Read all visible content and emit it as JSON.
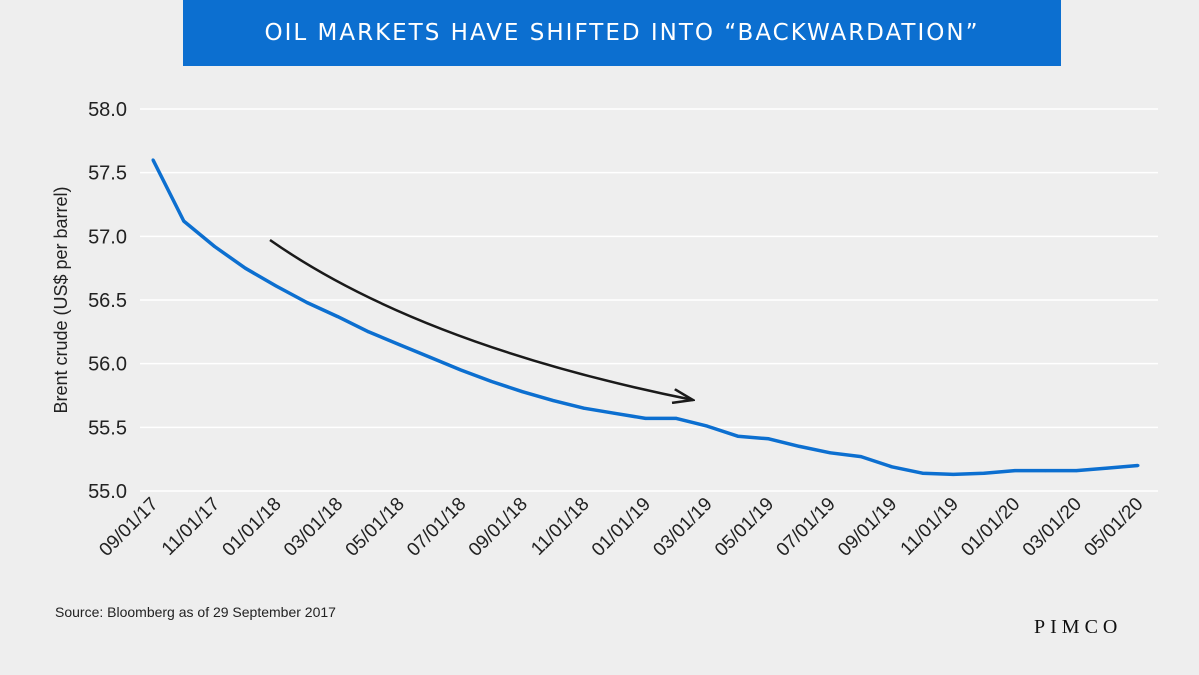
{
  "title": "OIL MARKETS HAVE SHIFTED INTO “BACKWARDATION”",
  "source": "Source: Bloomberg as of 29 September 2017",
  "logo": "PIMCO",
  "colors": {
    "banner": "#0c6fd0",
    "line": "#0c6fd0",
    "arrow": "#1a1a1a",
    "grid": "#ffffff"
  },
  "chart_data": {
    "type": "line",
    "title": "",
    "xlabel": "",
    "ylabel": "Brent crude (US$ per barrel)",
    "ylim": [
      55.0,
      58.0
    ],
    "yticks": [
      "58.0",
      "57.5",
      "57.0",
      "56.5",
      "56.0",
      "55.5",
      "55.0"
    ],
    "xticks": [
      "09/01/17",
      "11/01/17",
      "01/01/18",
      "03/01/18",
      "05/01/18",
      "07/01/18",
      "09/01/18",
      "11/01/18",
      "01/01/19",
      "03/01/19",
      "05/01/19",
      "07/01/19",
      "09/01/19",
      "11/01/19",
      "01/01/20",
      "03/01/20",
      "05/01/20"
    ],
    "grid": true,
    "legend": "none",
    "annotation": "downward-sloping arrow indicating backwardation",
    "series": [
      {
        "x": [
          "09/01/17",
          "10/01/17",
          "11/01/17",
          "12/01/17",
          "01/01/18",
          "02/01/18",
          "03/01/18",
          "04/01/18",
          "05/01/18",
          "06/01/18",
          "07/01/18",
          "08/01/18",
          "09/01/18",
          "10/01/18",
          "11/01/18",
          "12/01/18",
          "01/01/19",
          "02/01/19",
          "03/01/19",
          "04/01/19",
          "05/01/19",
          "06/01/19",
          "07/01/19",
          "08/01/19",
          "09/01/19",
          "10/01/19",
          "11/01/19",
          "12/01/19",
          "01/01/20",
          "02/01/20",
          "03/01/20",
          "04/01/20",
          "05/01/20"
        ],
        "values": [
          57.6,
          57.12,
          56.92,
          56.75,
          56.61,
          56.48,
          56.37,
          56.25,
          56.15,
          56.05,
          55.95,
          55.86,
          55.78,
          55.71,
          55.65,
          55.61,
          55.57,
          55.57,
          55.51,
          55.43,
          55.41,
          55.35,
          55.3,
          55.27,
          55.19,
          55.14,
          55.13,
          55.14,
          55.16,
          55.16,
          55.16,
          55.18,
          55.2
        ]
      }
    ]
  }
}
